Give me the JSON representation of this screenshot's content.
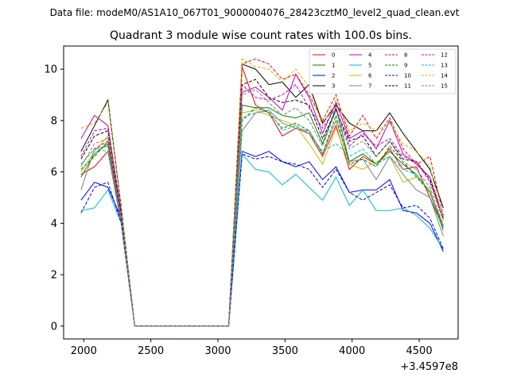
{
  "figure": {
    "suptitle": "Data file: modeM0/AS1A10_067T01_9000004076_28423cztM0_level2_quad_clean.evt",
    "xaxis_offset": "+3.4597e8"
  },
  "chart_data": {
    "type": "line",
    "title": "Quadrant 3 module wise count rates with 100.0s bins.",
    "xlabel": "",
    "ylabel": "",
    "xlim": [
      1850,
      4790
    ],
    "ylim": [
      -0.5,
      10.9
    ],
    "xticks": [
      2000,
      2500,
      3000,
      3500,
      4000,
      4500
    ],
    "xtick_labels": [
      "2000",
      "2500",
      "3000",
      "3500",
      "4000",
      "4500"
    ],
    "yticks": [
      0,
      2,
      4,
      6,
      8,
      10
    ],
    "ytick_labels": [
      "0",
      "2",
      "4",
      "6",
      "8",
      "10"
    ],
    "legend_location": "upper right",
    "x": [
      1980,
      2080,
      2180,
      2280,
      2380,
      2480,
      2580,
      2680,
      2780,
      2880,
      2980,
      3080,
      3180,
      3280,
      3380,
      3480,
      3580,
      3680,
      3780,
      3880,
      3980,
      4080,
      4180,
      4280,
      4380,
      4480,
      4580,
      4680
    ],
    "series": [
      {
        "name": "0",
        "color": "#ff0000",
        "dash": "solid",
        "values": [
          5.9,
          6.2,
          6.8,
          4.0,
          0,
          0,
          0,
          0,
          0,
          0,
          0,
          0,
          10.1,
          8.6,
          8.3,
          7.4,
          7.7,
          7.5,
          6.6,
          7.8,
          6.1,
          6.6,
          6.3,
          6.9,
          6.1,
          6.2,
          5.0,
          3.8
        ]
      },
      {
        "name": "1",
        "color": "#008000",
        "dash": "solid",
        "values": [
          5.8,
          6.7,
          7.1,
          4.1,
          0,
          0,
          0,
          0,
          0,
          0,
          0,
          0,
          8.6,
          8.5,
          8.5,
          8.2,
          8.1,
          8.3,
          7.1,
          8.5,
          6.4,
          6.7,
          6.3,
          6.8,
          6.3,
          5.9,
          5.2,
          3.9
        ]
      },
      {
        "name": "2",
        "color": "#0000ff",
        "dash": "solid",
        "values": [
          4.9,
          5.6,
          5.4,
          4.2,
          0,
          0,
          0,
          0,
          0,
          0,
          0,
          0,
          6.8,
          6.6,
          6.8,
          6.4,
          6.2,
          6.4,
          5.7,
          6.2,
          5.2,
          5.3,
          5.3,
          5.7,
          4.5,
          4.4,
          4.0,
          2.9
        ]
      },
      {
        "name": "3",
        "color": "#000000",
        "dash": "solid",
        "values": [
          6.8,
          7.8,
          8.8,
          4.6,
          0,
          0,
          0,
          0,
          0,
          0,
          0,
          0,
          10.2,
          10.0,
          9.4,
          9.5,
          8.9,
          9.4,
          7.9,
          8.6,
          7.9,
          7.6,
          7.6,
          8.3,
          7.5,
          6.8,
          6.1,
          4.6
        ]
      },
      {
        "name": "4",
        "color": "#bf00bf",
        "dash": "solid",
        "values": [
          7.3,
          8.2,
          7.8,
          4.4,
          0,
          0,
          0,
          0,
          0,
          0,
          0,
          0,
          9.1,
          9.3,
          8.9,
          8.4,
          9.8,
          8.9,
          7.5,
          8.7,
          7.3,
          7.6,
          6.9,
          8.0,
          6.7,
          6.3,
          5.8,
          4.2
        ]
      },
      {
        "name": "5",
        "color": "#00bfbf",
        "dash": "solid",
        "values": [
          4.5,
          4.6,
          5.3,
          4.0,
          0,
          0,
          0,
          0,
          0,
          0,
          0,
          0,
          6.7,
          6.1,
          6.0,
          5.5,
          5.9,
          5.4,
          4.9,
          5.8,
          4.7,
          5.3,
          4.5,
          4.5,
          4.6,
          4.3,
          3.8,
          3.0
        ]
      },
      {
        "name": "6",
        "color": "#bfbf00",
        "dash": "solid",
        "values": [
          6.0,
          6.8,
          7.4,
          4.2,
          0,
          0,
          0,
          0,
          0,
          0,
          0,
          0,
          8.3,
          8.4,
          8.2,
          8.0,
          7.8,
          7.1,
          6.3,
          7.7,
          6.3,
          6.1,
          6.4,
          6.6,
          5.6,
          5.8,
          5.3,
          3.7
        ]
      },
      {
        "name": "7",
        "color": "#808080",
        "dash": "solid",
        "values": [
          5.3,
          6.9,
          7.0,
          4.1,
          0,
          0,
          0,
          0,
          0,
          0,
          0,
          0,
          7.6,
          8.3,
          8.4,
          7.9,
          7.7,
          7.6,
          6.7,
          8.0,
          6.4,
          6.5,
          5.7,
          6.6,
          5.9,
          5.3,
          5.0,
          3.5
        ]
      },
      {
        "name": "8",
        "color": "#ff0000",
        "dash": "dashed",
        "values": [
          6.3,
          6.9,
          7.2,
          4.3,
          0,
          0,
          0,
          0,
          0,
          0,
          0,
          0,
          10.2,
          10.4,
          10.2,
          9.6,
          9.8,
          9.0,
          8.0,
          9.0,
          7.4,
          8.2,
          7.3,
          8.1,
          6.9,
          6.3,
          6.6,
          4.3
        ]
      },
      {
        "name": "9",
        "color": "#008000",
        "dash": "dashed",
        "values": [
          6.1,
          6.6,
          7.2,
          4.1,
          0,
          0,
          0,
          0,
          0,
          0,
          0,
          0,
          8.0,
          8.5,
          8.3,
          7.7,
          7.9,
          7.6,
          6.7,
          8.2,
          6.3,
          6.5,
          6.2,
          7.0,
          6.4,
          5.8,
          5.2,
          3.8
        ]
      },
      {
        "name": "10",
        "color": "#0000ff",
        "dash": "dashed",
        "values": [
          4.4,
          5.4,
          5.6,
          4.0,
          0,
          0,
          0,
          0,
          0,
          0,
          0,
          0,
          6.7,
          6.5,
          6.6,
          6.4,
          6.3,
          6.1,
          5.4,
          6.1,
          5.2,
          4.9,
          5.2,
          5.5,
          4.6,
          4.7,
          4.2,
          3.0
        ]
      },
      {
        "name": "11",
        "color": "#000000",
        "dash": "dashed",
        "values": [
          6.5,
          7.4,
          7.6,
          4.3,
          0,
          0,
          0,
          0,
          0,
          0,
          0,
          0,
          9.4,
          9.6,
          8.9,
          8.7,
          8.8,
          8.6,
          7.3,
          8.4,
          7.2,
          7.4,
          6.6,
          7.2,
          6.5,
          6.4,
          5.7,
          4.2
        ]
      },
      {
        "name": "12",
        "color": "#bf00bf",
        "dash": "dashed",
        "values": [
          6.6,
          7.6,
          7.7,
          4.4,
          0,
          0,
          0,
          0,
          0,
          0,
          0,
          0,
          9.4,
          8.9,
          8.8,
          9.0,
          9.4,
          8.5,
          7.7,
          8.5,
          7.0,
          7.5,
          7.0,
          7.3,
          6.6,
          6.4,
          5.6,
          4.1
        ]
      },
      {
        "name": "13",
        "color": "#00bfbf",
        "dash": "dashed",
        "values": [
          6.3,
          6.9,
          6.8,
          4.1,
          0,
          0,
          0,
          0,
          0,
          0,
          0,
          0,
          8.1,
          8.3,
          8.4,
          7.6,
          7.8,
          7.5,
          6.8,
          7.1,
          6.6,
          6.9,
          6.3,
          6.6,
          6.1,
          5.9,
          5.2,
          3.7
        ]
      },
      {
        "name": "14",
        "color": "#bfbf00",
        "dash": "dashed",
        "values": [
          7.7,
          7.9,
          8.7,
          4.6,
          0,
          0,
          0,
          0,
          0,
          0,
          0,
          0,
          10.4,
          10.1,
          10.0,
          9.5,
          10.0,
          9.3,
          7.8,
          8.8,
          7.6,
          7.9,
          7.6,
          7.9,
          7.1,
          6.8,
          6.2,
          4.1
        ]
      },
      {
        "name": "15",
        "color": "#808080",
        "dash": "dashed",
        "values": [
          6.2,
          7.1,
          7.3,
          4.2,
          0,
          0,
          0,
          0,
          0,
          0,
          0,
          0,
          9.0,
          9.2,
          8.7,
          8.2,
          8.5,
          8.0,
          7.0,
          8.4,
          6.9,
          7.2,
          6.6,
          7.2,
          6.4,
          6.1,
          5.4,
          3.9
        ]
      }
    ]
  }
}
